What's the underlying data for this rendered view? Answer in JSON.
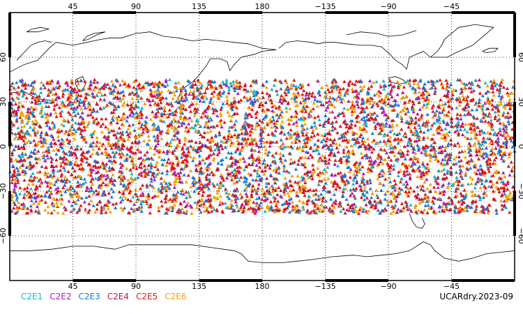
{
  "map": {
    "lon_ticks_top": [
      "45",
      "90",
      "135",
      "180",
      "−135",
      "−90",
      "−45"
    ],
    "lon_ticks_bottom": [
      "45",
      "90",
      "135",
      "180",
      "−135",
      "−90",
      "−45"
    ],
    "lat_ticks_left": [
      "60",
      "30",
      "0",
      "−30",
      "−60"
    ],
    "lat_ticks_right": [
      "60",
      "30",
      "0",
      "−30",
      "−60"
    ],
    "lon_range": [
      0,
      360
    ],
    "lat_range": [
      -90,
      90
    ],
    "grid": "dotted",
    "data_lat_band": [
      -45,
      45
    ],
    "markers": "triangles"
  },
  "legend": {
    "items": [
      {
        "label": "C2E1",
        "color": "#18b4c8"
      },
      {
        "label": "C2E2",
        "color": "#a020c8"
      },
      {
        "label": "C2E3",
        "color": "#1e78d2"
      },
      {
        "label": "C2E4",
        "color": "#b41e3c"
      },
      {
        "label": "C2E5",
        "color": "#e61414"
      },
      {
        "label": "C2E6",
        "color": "#f5a000"
      }
    ]
  },
  "footer": {
    "label": "UCARdry.2023-09"
  }
}
